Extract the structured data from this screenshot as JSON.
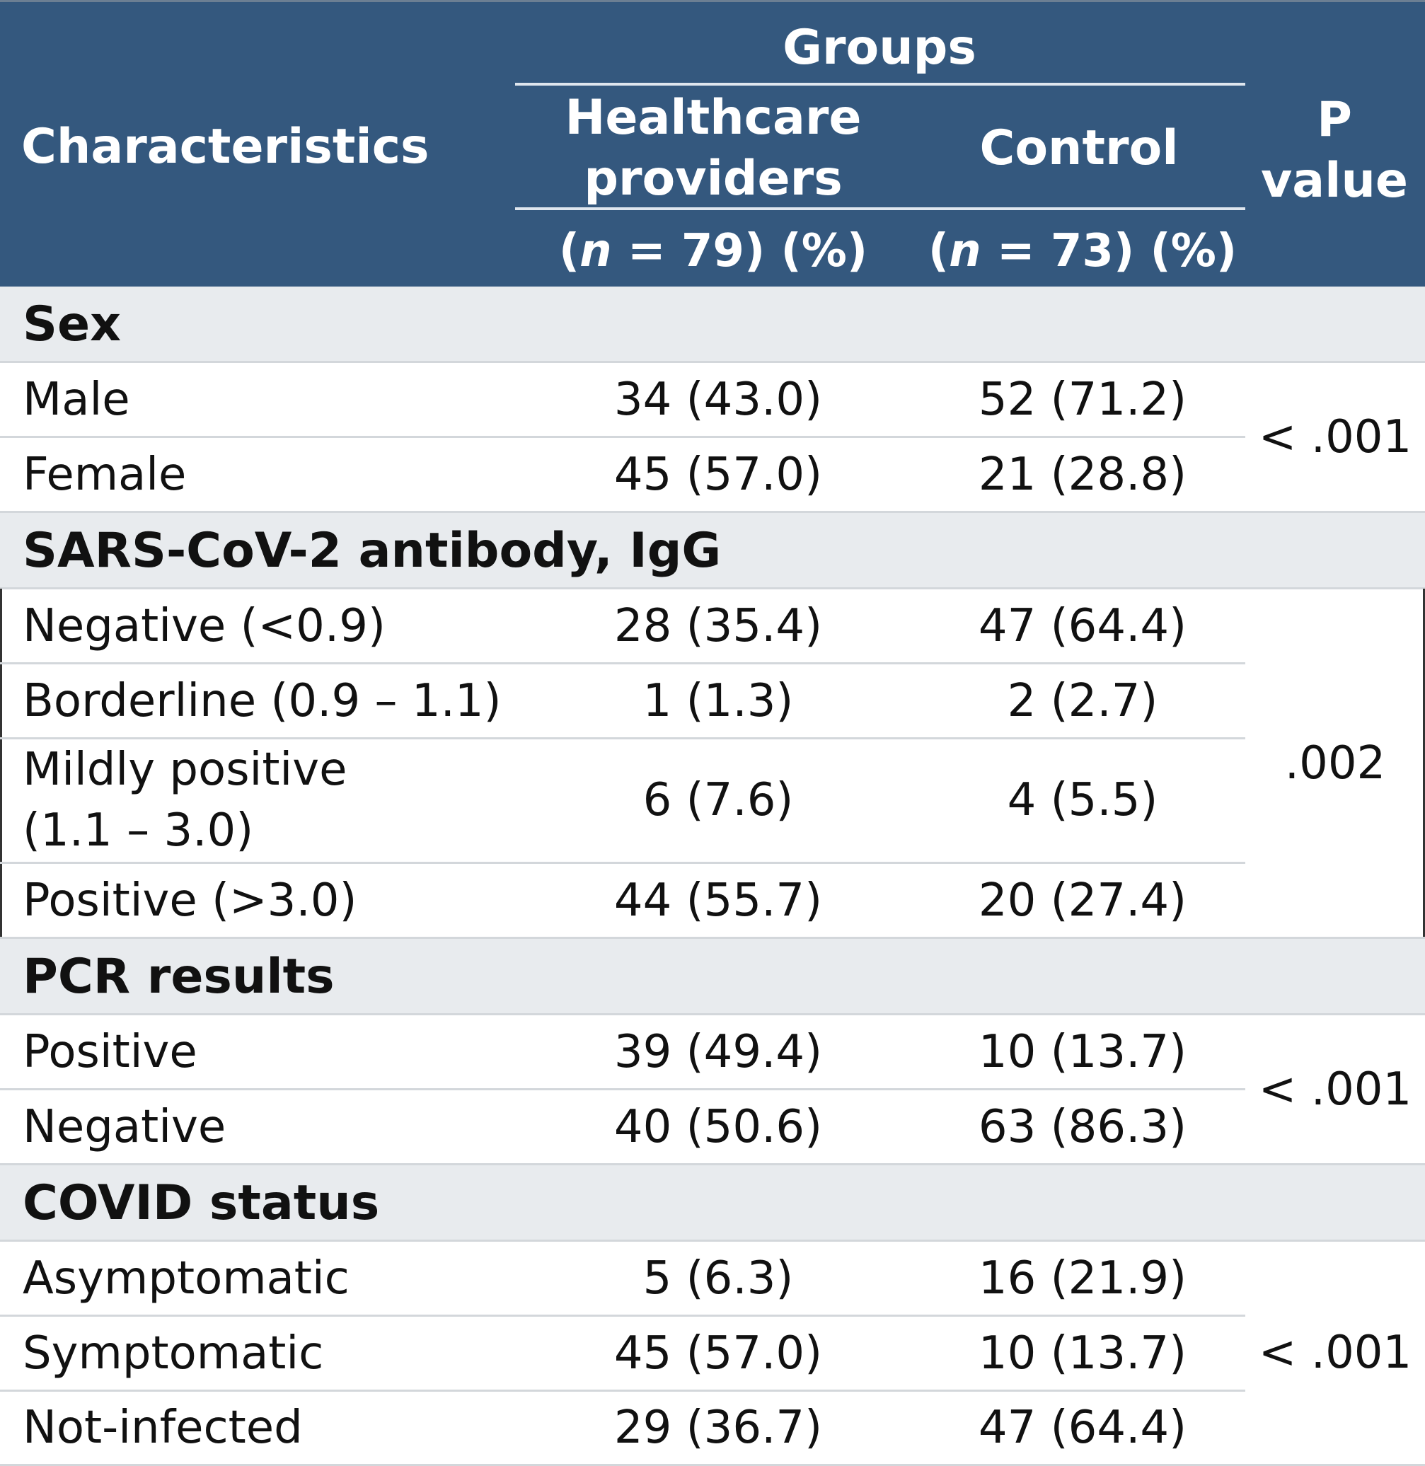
{
  "table": {
    "header": {
      "characteristics": "Characteristics",
      "groups": "Groups",
      "hcp": "Healthcare providers",
      "control": "Control",
      "p_value": "P value",
      "hcp_n_open": "(",
      "hcp_n_var": "n",
      "hcp_n_rest": " = 79) (%)",
      "ctrl_n_open": "(",
      "ctrl_n_var": "n",
      "ctrl_n_rest": " = 73) (%)"
    },
    "sections": [
      {
        "title": "Sex",
        "p": "< .001",
        "rows": [
          {
            "label": "Male",
            "hcp": "34 (43.0)",
            "control": "52 (71.2)"
          },
          {
            "label": "Female",
            "hcp": "45 (57.0)",
            "control": "21 (28.8)"
          }
        ]
      },
      {
        "title": "SARS-CoV-2 antibody, IgG",
        "p": ".002",
        "rows": [
          {
            "label": "Negative (<0.9)",
            "hcp": "28 (35.4)",
            "control": "47 (64.4)"
          },
          {
            "label": "Borderline (0.9 – 1.1)",
            "hcp": "1 (1.3)",
            "control": "2 (2.7)"
          },
          {
            "label": "Mildly positive (1.1 – 3.0)",
            "hcp": "6 (7.6)",
            "control": "4 (5.5)"
          },
          {
            "label": "Positive (>3.0)",
            "hcp": "44 (55.7)",
            "control": "20 (27.4)"
          }
        ]
      },
      {
        "title": "PCR results",
        "p": "< .001",
        "rows": [
          {
            "label": "Positive",
            "hcp": "39 (49.4)",
            "control": "10 (13.7)"
          },
          {
            "label": "Negative",
            "hcp": "40 (50.6)",
            "control": "63 (86.3)"
          }
        ]
      },
      {
        "title": "COVID status",
        "p": "< .001",
        "rows": [
          {
            "label": "Asymptomatic",
            "hcp": "5 (6.3)",
            "control": "16 (21.9)"
          },
          {
            "label": "Symptomatic",
            "hcp": "45 (57.0)",
            "control": "10 (13.7)"
          },
          {
            "label": "Not-infected",
            "hcp": "29 (36.7)",
            "control": "47 (64.4)"
          }
        ]
      }
    ]
  }
}
